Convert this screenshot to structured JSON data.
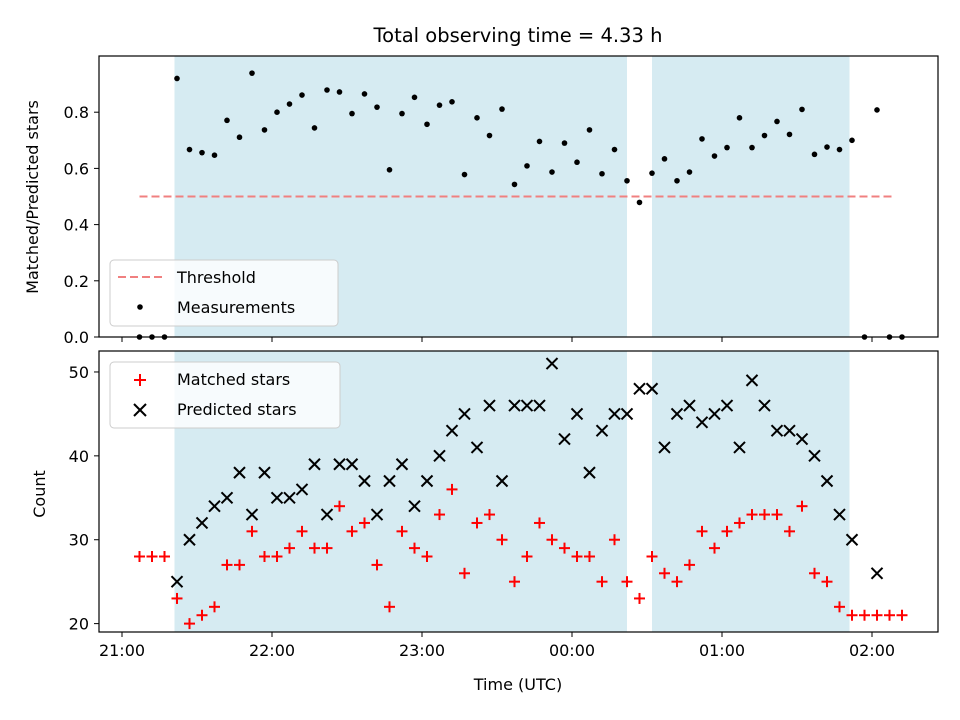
{
  "chart_data": [
    {
      "type": "scatter",
      "title": "Total observing time = 4.33 h",
      "xlabel": "",
      "ylabel": "Matched/Predicted stars",
      "ylim": [
        0,
        1.0
      ],
      "yticks": [
        "0.0",
        "0.2",
        "0.4",
        "0.6",
        "0.8"
      ],
      "shaded_intervals": [
        [
          "21:21",
          "00:22"
        ],
        [
          "00:32",
          "01:51"
        ]
      ],
      "shade_color": "#add8e6",
      "threshold": {
        "name": "Threshold",
        "value": 0.5,
        "x_range": [
          "21:07",
          "02:09"
        ],
        "color": "#f08080"
      },
      "legend": {
        "placement": "lower-left",
        "entries": [
          "Threshold",
          "Measurements"
        ]
      },
      "series": [
        {
          "name": "Measurements",
          "color": "#000000",
          "marker": "dot",
          "points": [
            [
              "21:07",
              0.0
            ],
            [
              "21:12",
              0.0
            ],
            [
              "21:17",
              0.0
            ],
            [
              "21:22",
              0.92
            ],
            [
              "21:27",
              0.667
            ],
            [
              "21:32",
              0.656
            ],
            [
              "21:37",
              0.647
            ],
            [
              "21:42",
              0.771
            ],
            [
              "21:47",
              0.711
            ],
            [
              "21:52",
              0.939
            ],
            [
              "21:57",
              0.737
            ],
            [
              "22:02",
              0.8
            ],
            [
              "22:07",
              0.829
            ],
            [
              "22:12",
              0.861
            ],
            [
              "22:17",
              0.744
            ],
            [
              "22:22",
              0.879
            ],
            [
              "22:27",
              0.872
            ],
            [
              "22:32",
              0.795
            ],
            [
              "22:37",
              0.865
            ],
            [
              "22:42",
              0.818
            ],
            [
              "22:47",
              0.595
            ],
            [
              "22:52",
              0.795
            ],
            [
              "22:57",
              0.853
            ],
            [
              "23:02",
              0.757
            ],
            [
              "23:07",
              0.825
            ],
            [
              "23:12",
              0.837
            ],
            [
              "23:17",
              0.578
            ],
            [
              "23:22",
              0.78
            ],
            [
              "23:27",
              0.717
            ],
            [
              "23:32",
              0.811
            ],
            [
              "23:37",
              0.543
            ],
            [
              "23:42",
              0.609
            ],
            [
              "23:47",
              0.696
            ],
            [
              "23:52",
              0.587
            ],
            [
              "23:57",
              0.69
            ],
            [
              "00:02",
              0.622
            ],
            [
              "00:07",
              0.737
            ],
            [
              "00:12",
              0.581
            ],
            [
              "00:17",
              0.667
            ],
            [
              "00:22",
              0.556
            ],
            [
              "00:27",
              0.479
            ],
            [
              "00:32",
              0.583
            ],
            [
              "00:37",
              0.634
            ],
            [
              "00:42",
              0.556
            ],
            [
              "00:47",
              0.587
            ],
            [
              "00:52",
              0.705
            ],
            [
              "00:57",
              0.644
            ],
            [
              "01:02",
              0.674
            ],
            [
              "01:07",
              0.78
            ],
            [
              "01:12",
              0.674
            ],
            [
              "01:17",
              0.717
            ],
            [
              "01:22",
              0.767
            ],
            [
              "01:27",
              0.721
            ],
            [
              "01:32",
              0.81
            ],
            [
              "01:37",
              0.65
            ],
            [
              "01:42",
              0.676
            ],
            [
              "01:47",
              0.667
            ],
            [
              "01:52",
              0.7
            ],
            [
              "01:57",
              0.0
            ],
            [
              "02:02",
              0.808
            ],
            [
              "02:07",
              0.0
            ],
            [
              "02:12",
              0.0
            ]
          ]
        }
      ]
    },
    {
      "type": "scatter",
      "title": "",
      "xlabel": "Time (UTC)",
      "ylabel": "Count",
      "ylim": [
        19,
        52.5
      ],
      "yticks": [
        "20",
        "30",
        "40",
        "50"
      ],
      "xticks": [
        "21:00",
        "22:00",
        "23:00",
        "00:00",
        "01:00",
        "02:00"
      ],
      "shaded_intervals": [
        [
          "21:21",
          "00:22"
        ],
        [
          "00:32",
          "01:51"
        ]
      ],
      "shade_color": "#add8e6",
      "legend": {
        "placement": "upper-left",
        "entries": [
          "Matched stars",
          "Predicted stars"
        ]
      },
      "series": [
        {
          "name": "Matched stars",
          "color": "#ff0000",
          "marker": "plus",
          "points": [
            [
              "21:07",
              28
            ],
            [
              "21:12",
              28
            ],
            [
              "21:17",
              28
            ],
            [
              "21:22",
              23
            ],
            [
              "21:27",
              20
            ],
            [
              "21:32",
              21
            ],
            [
              "21:37",
              22
            ],
            [
              "21:42",
              27
            ],
            [
              "21:47",
              27
            ],
            [
              "21:52",
              31
            ],
            [
              "21:57",
              28
            ],
            [
              "22:02",
              28
            ],
            [
              "22:07",
              29
            ],
            [
              "22:12",
              31
            ],
            [
              "22:17",
              29
            ],
            [
              "22:22",
              29
            ],
            [
              "22:27",
              34
            ],
            [
              "22:32",
              31
            ],
            [
              "22:37",
              32
            ],
            [
              "22:42",
              27
            ],
            [
              "22:47",
              22
            ],
            [
              "22:52",
              31
            ],
            [
              "22:57",
              29
            ],
            [
              "23:02",
              28
            ],
            [
              "23:07",
              33
            ],
            [
              "23:12",
              36
            ],
            [
              "23:17",
              26
            ],
            [
              "23:22",
              32
            ],
            [
              "23:27",
              33
            ],
            [
              "23:32",
              30
            ],
            [
              "23:37",
              25
            ],
            [
              "23:42",
              28
            ],
            [
              "23:47",
              32
            ],
            [
              "23:52",
              30
            ],
            [
              "23:57",
              29
            ],
            [
              "00:02",
              28
            ],
            [
              "00:07",
              28
            ],
            [
              "00:12",
              25
            ],
            [
              "00:17",
              30
            ],
            [
              "00:22",
              25
            ],
            [
              "00:27",
              23
            ],
            [
              "00:32",
              28
            ],
            [
              "00:37",
              26
            ],
            [
              "00:42",
              25
            ],
            [
              "00:47",
              27
            ],
            [
              "00:52",
              31
            ],
            [
              "00:57",
              29
            ],
            [
              "01:02",
              31
            ],
            [
              "01:07",
              32
            ],
            [
              "01:12",
              33
            ],
            [
              "01:17",
              33
            ],
            [
              "01:22",
              33
            ],
            [
              "01:27",
              31
            ],
            [
              "01:32",
              34
            ],
            [
              "01:37",
              26
            ],
            [
              "01:42",
              25
            ],
            [
              "01:47",
              22
            ],
            [
              "01:52",
              21
            ],
            [
              "01:57",
              21
            ],
            [
              "02:02",
              21
            ],
            [
              "02:07",
              21
            ],
            [
              "02:12",
              21
            ]
          ]
        },
        {
          "name": "Predicted stars",
          "color": "#000000",
          "marker": "x",
          "points": [
            [
              "21:22",
              25
            ],
            [
              "21:27",
              30
            ],
            [
              "21:32",
              32
            ],
            [
              "21:37",
              34
            ],
            [
              "21:42",
              35
            ],
            [
              "21:47",
              38
            ],
            [
              "21:52",
              33
            ],
            [
              "21:57",
              38
            ],
            [
              "22:02",
              35
            ],
            [
              "22:07",
              35
            ],
            [
              "22:12",
              36
            ],
            [
              "22:17",
              39
            ],
            [
              "22:22",
              33
            ],
            [
              "22:27",
              39
            ],
            [
              "22:32",
              39
            ],
            [
              "22:37",
              37
            ],
            [
              "22:42",
              33
            ],
            [
              "22:47",
              37
            ],
            [
              "22:52",
              39
            ],
            [
              "22:57",
              34
            ],
            [
              "23:02",
              37
            ],
            [
              "23:07",
              40
            ],
            [
              "23:12",
              43
            ],
            [
              "23:17",
              45
            ],
            [
              "23:22",
              41
            ],
            [
              "23:27",
              46
            ],
            [
              "23:32",
              37
            ],
            [
              "23:37",
              46
            ],
            [
              "23:42",
              46
            ],
            [
              "23:47",
              46
            ],
            [
              "23:52",
              51
            ],
            [
              "23:57",
              42
            ],
            [
              "00:02",
              45
            ],
            [
              "00:07",
              38
            ],
            [
              "00:12",
              43
            ],
            [
              "00:17",
              45
            ],
            [
              "00:22",
              45
            ],
            [
              "00:27",
              48
            ],
            [
              "00:32",
              48
            ],
            [
              "00:37",
              41
            ],
            [
              "00:42",
              45
            ],
            [
              "00:47",
              46
            ],
            [
              "00:52",
              44
            ],
            [
              "00:57",
              45
            ],
            [
              "01:02",
              46
            ],
            [
              "01:07",
              41
            ],
            [
              "01:12",
              49
            ],
            [
              "01:17",
              46
            ],
            [
              "01:22",
              43
            ],
            [
              "01:27",
              43
            ],
            [
              "01:32",
              42
            ],
            [
              "01:37",
              40
            ],
            [
              "01:42",
              37
            ],
            [
              "01:47",
              33
            ],
            [
              "01:52",
              30
            ],
            [
              "02:02",
              26
            ]
          ]
        }
      ]
    }
  ]
}
